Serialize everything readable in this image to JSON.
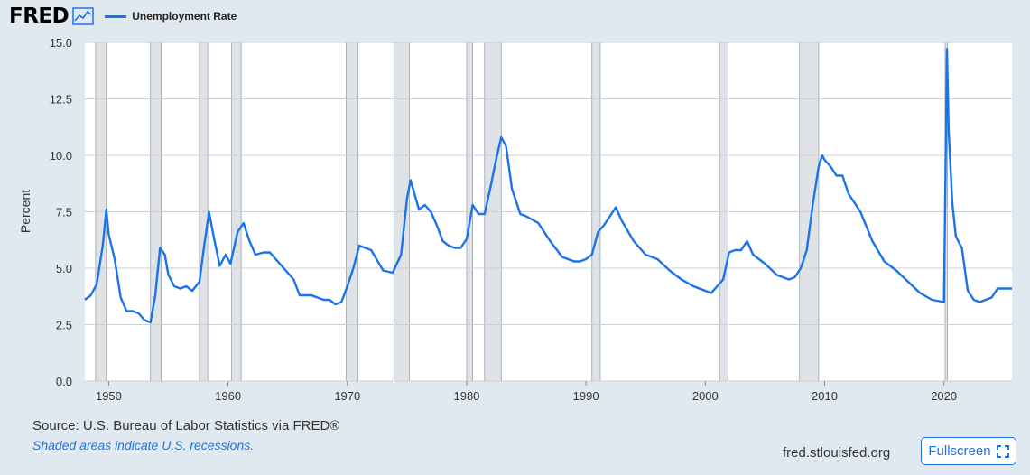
{
  "header": {
    "logo_text": "FRED",
    "series_name": "Unemployment Rate"
  },
  "footer": {
    "source": "Source: U.S. Bureau of Labor Statistics via FRED®",
    "recession_note": "Shaded areas indicate U.S. recessions.",
    "site": "fred.stlouisfed.org",
    "fullscreen_label": "Fullscreen"
  },
  "colors": {
    "line": "#1a73e8",
    "recession": "#dfe3e8",
    "background": "#e1e9f0",
    "grid": "#cfcfcf"
  },
  "chart_data": {
    "type": "line",
    "title": "",
    "xlabel": "",
    "ylabel": "Percent",
    "ylim": [
      0,
      15
    ],
    "xlim": [
      1948.0,
      2025.7
    ],
    "y_ticks": [
      0.0,
      2.5,
      5.0,
      7.5,
      10.0,
      12.5,
      15.0
    ],
    "y_tick_labels": [
      "0.0",
      "2.5",
      "5.0",
      "7.5",
      "10.0",
      "12.5",
      "15.0"
    ],
    "x_ticks": [
      1950,
      1960,
      1970,
      1980,
      1990,
      2000,
      2010,
      2020
    ],
    "x_tick_labels": [
      "1950",
      "1960",
      "1970",
      "1980",
      "1990",
      "2000",
      "2010",
      "2020"
    ],
    "grid": true,
    "legend": "top-left",
    "recessions": [
      [
        1948.9,
        1949.8
      ],
      [
        1953.5,
        1954.4
      ],
      [
        1957.6,
        1958.3
      ],
      [
        1960.3,
        1961.1
      ],
      [
        1969.9,
        1970.9
      ],
      [
        1973.9,
        1975.2
      ],
      [
        1980.0,
        1980.5
      ],
      [
        1981.5,
        1982.9
      ],
      [
        1990.5,
        1991.2
      ],
      [
        2001.2,
        2001.9
      ],
      [
        2007.9,
        2009.5
      ],
      [
        2020.1,
        2020.3
      ]
    ],
    "series": [
      {
        "name": "Unemployment Rate",
        "x": [
          1948.0,
          1948.5,
          1949.0,
          1949.5,
          1949.8,
          1950.0,
          1950.5,
          1951.0,
          1951.5,
          1952.0,
          1952.5,
          1953.0,
          1953.5,
          1953.9,
          1954.3,
          1954.7,
          1955.0,
          1955.5,
          1956.0,
          1956.5,
          1957.0,
          1957.6,
          1958.0,
          1958.4,
          1958.8,
          1959.3,
          1959.8,
          1960.2,
          1960.8,
          1961.3,
          1961.8,
          1962.3,
          1963.0,
          1963.5,
          1964.0,
          1964.5,
          1965.0,
          1965.5,
          1966.0,
          1967.0,
          1968.0,
          1968.5,
          1969.0,
          1969.5,
          1970.0,
          1970.5,
          1971.0,
          1972.0,
          1973.0,
          1973.8,
          1974.5,
          1975.0,
          1975.3,
          1976.0,
          1976.5,
          1977.0,
          1977.5,
          1978.0,
          1978.5,
          1979.0,
          1979.5,
          1980.0,
          1980.5,
          1981.0,
          1981.5,
          1982.0,
          1982.5,
          1982.9,
          1983.3,
          1983.8,
          1984.5,
          1985.0,
          1986.0,
          1987.0,
          1988.0,
          1989.0,
          1989.5,
          1990.0,
          1990.5,
          1991.0,
          1991.5,
          1992.0,
          1992.5,
          1993.0,
          1994.0,
          1995.0,
          1996.0,
          1997.0,
          1998.0,
          1999.0,
          2000.0,
          2000.5,
          2001.0,
          2001.5,
          2002.0,
          2002.5,
          2003.0,
          2003.5,
          2004.0,
          2005.0,
          2006.0,
          2007.0,
          2007.5,
          2008.0,
          2008.5,
          2009.0,
          2009.5,
          2009.8,
          2010.0,
          2010.5,
          2011.0,
          2011.5,
          2012.0,
          2013.0,
          2014.0,
          2015.0,
          2016.0,
          2017.0,
          2018.0,
          2019.0,
          2020.0,
          2020.25,
          2020.4,
          2020.7,
          2021.0,
          2021.5,
          2022.0,
          2022.5,
          2023.0,
          2023.5,
          2024.0,
          2024.5,
          2025.0,
          2025.7
        ],
        "values": [
          3.6,
          3.8,
          4.3,
          6.0,
          7.6,
          6.5,
          5.4,
          3.7,
          3.1,
          3.1,
          3.0,
          2.7,
          2.6,
          3.8,
          5.9,
          5.6,
          4.7,
          4.2,
          4.1,
          4.2,
          4.0,
          4.4,
          6.0,
          7.5,
          6.4,
          5.1,
          5.6,
          5.2,
          6.6,
          7.0,
          6.2,
          5.6,
          5.7,
          5.7,
          5.4,
          5.1,
          4.8,
          4.5,
          3.8,
          3.8,
          3.6,
          3.6,
          3.4,
          3.5,
          4.2,
          5.0,
          6.0,
          5.8,
          4.9,
          4.8,
          5.6,
          8.1,
          8.9,
          7.6,
          7.8,
          7.5,
          6.9,
          6.2,
          6.0,
          5.9,
          5.9,
          6.3,
          7.8,
          7.4,
          7.4,
          8.6,
          9.9,
          10.8,
          10.4,
          8.5,
          7.4,
          7.3,
          7.0,
          6.2,
          5.5,
          5.3,
          5.3,
          5.4,
          5.6,
          6.6,
          6.9,
          7.3,
          7.7,
          7.1,
          6.2,
          5.6,
          5.4,
          4.9,
          4.5,
          4.2,
          4.0,
          3.9,
          4.2,
          4.5,
          5.7,
          5.8,
          5.8,
          6.2,
          5.6,
          5.2,
          4.7,
          4.5,
          4.6,
          5.0,
          5.8,
          7.8,
          9.5,
          10.0,
          9.8,
          9.5,
          9.1,
          9.1,
          8.3,
          7.5,
          6.2,
          5.3,
          4.9,
          4.4,
          3.9,
          3.6,
          3.5,
          14.7,
          11.1,
          7.9,
          6.4,
          5.9,
          4.0,
          3.6,
          3.5,
          3.6,
          3.7,
          4.1,
          4.1,
          4.1
        ]
      }
    ]
  }
}
